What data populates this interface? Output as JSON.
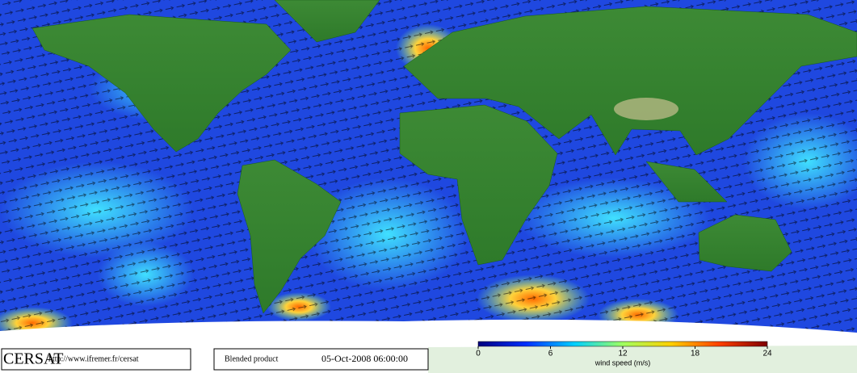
{
  "footer": {
    "logo": "CERSAT",
    "url": "http://www.ifremer.fr/cersat",
    "product": "Blended product",
    "timestamp": "05-Oct-2008 06:00:00"
  },
  "colorbar": {
    "label": "wind speed (m/s)",
    "lim": [
      0,
      24
    ],
    "ticks": [
      0,
      6,
      12,
      18,
      24
    ],
    "colors": [
      "#00007f",
      "#0030ff",
      "#00d0ff",
      "#a0ff60",
      "#ffd000",
      "#ff4000",
      "#7f0000"
    ]
  }
}
